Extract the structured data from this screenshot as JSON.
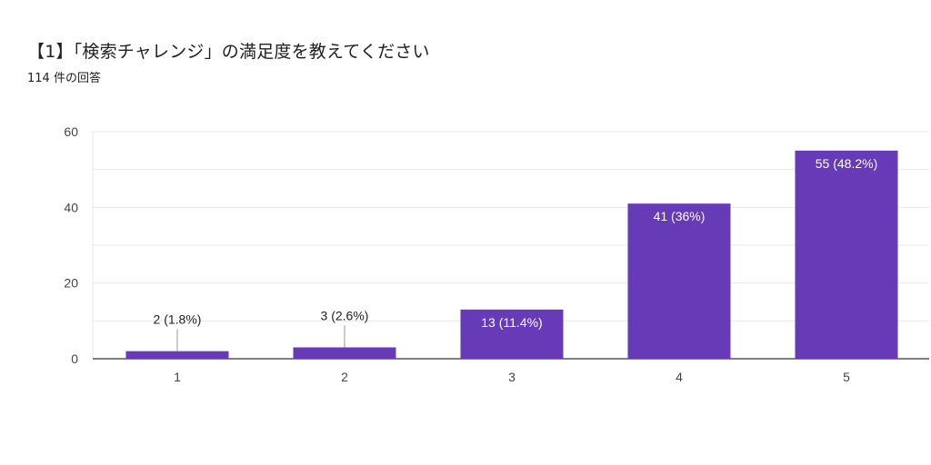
{
  "header": {
    "title": "【1】「検索チャレンジ」の満足度を教えてください",
    "response_count": "114 件の回答"
  },
  "colors": {
    "bar": "#673ab7",
    "gridline": "#e8e8e8",
    "axis": "#333333"
  },
  "chart_data": {
    "type": "bar",
    "title": "【1】「検索チャレンジ」の満足度を教えてください",
    "subtitle": "114 件の回答",
    "categories": [
      "1",
      "2",
      "3",
      "4",
      "5"
    ],
    "values": [
      2,
      3,
      13,
      41,
      55
    ],
    "data_labels": [
      "2 (1.8%)",
      "3 (2.6%)",
      "13 (11.4%)",
      "41 (36%)",
      "55 (48.2%)"
    ],
    "ylim": [
      0,
      60
    ],
    "yticks": [
      0,
      20,
      40,
      60
    ],
    "grid": true,
    "legend": "none"
  }
}
